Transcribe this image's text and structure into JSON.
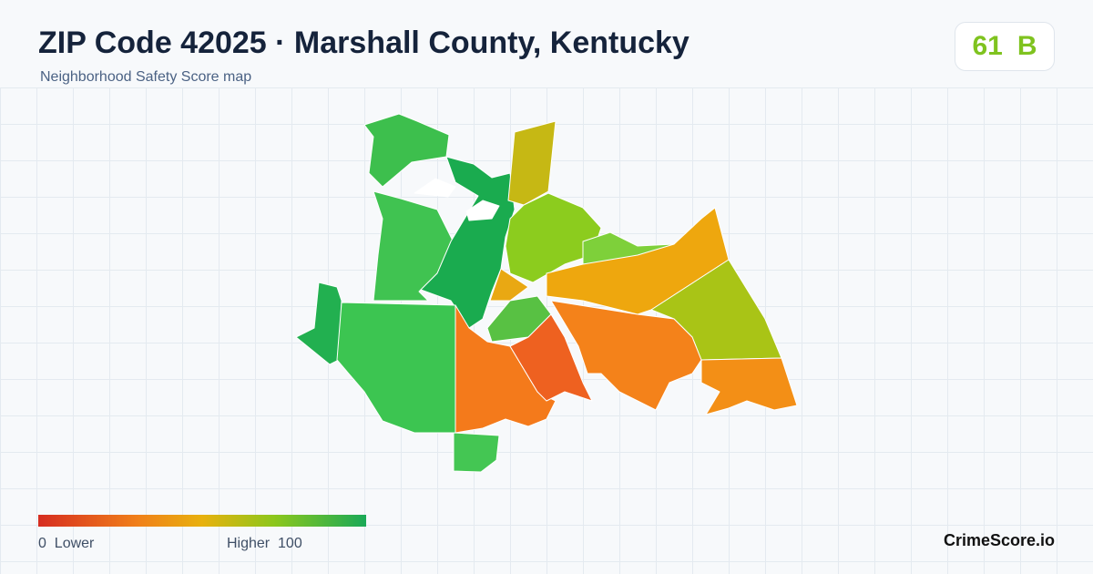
{
  "header": {
    "title": "ZIP Code 42025 · Marshall County, Kentucky",
    "subtitle": "Neighborhood Safety Score map"
  },
  "score": {
    "value": 61,
    "grade": "B"
  },
  "legend": {
    "min": 0,
    "min_label": "Lower",
    "max_label": "Higher",
    "max": 100
  },
  "footer": {
    "brand": "CrimeScore.io"
  }
}
